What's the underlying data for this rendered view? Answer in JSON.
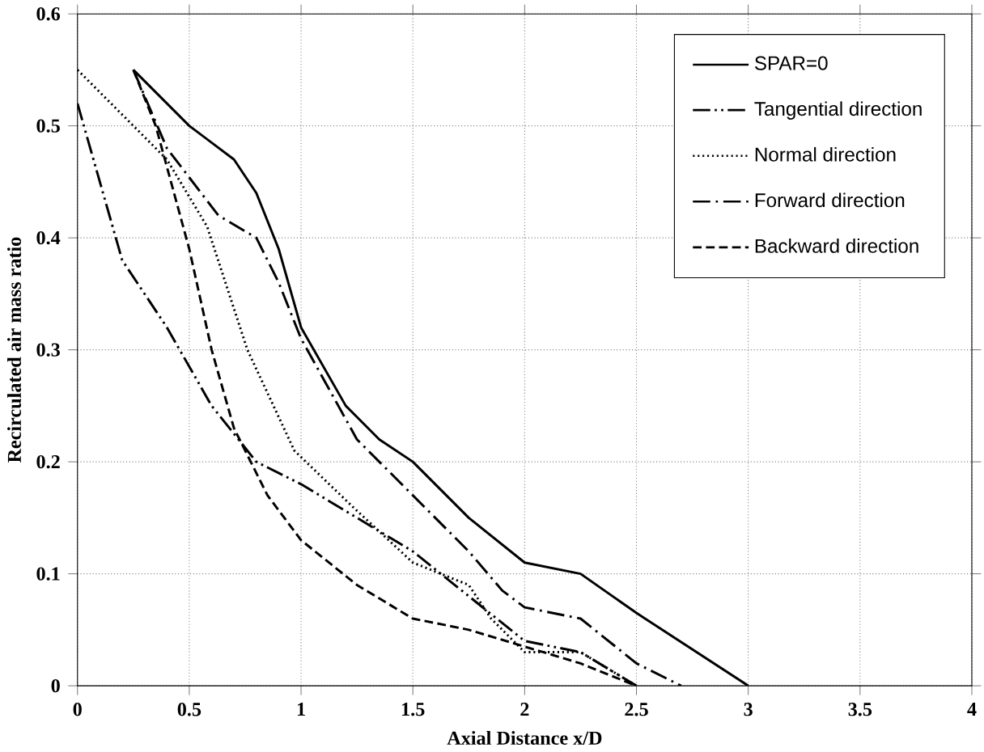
{
  "chart_data": {
    "type": "line",
    "xlabel": "Axial Distance x/D",
    "ylabel": "Recirculated air mass ratio",
    "xlim": [
      0,
      4
    ],
    "xticks": [
      0,
      0.5,
      1,
      1.5,
      2,
      2.5,
      3,
      3.5,
      4
    ],
    "ylim": [
      0,
      0.6
    ],
    "yticks": [
      0,
      0.1,
      0.2,
      0.3,
      0.4,
      0.5,
      0.6
    ],
    "grid": true,
    "legend": "top right",
    "marker": "none",
    "series": [
      {
        "name": "SPAR=0",
        "color": "#000000",
        "line_style": "solid",
        "x": [
          0.25,
          0.5,
          0.7,
          0.8,
          0.9,
          1.0,
          1.2,
          1.35,
          1.5,
          1.75,
          2.0,
          2.25,
          2.5,
          3.0
        ],
        "values": [
          0.55,
          0.5,
          0.47,
          0.44,
          0.39,
          0.32,
          0.25,
          0.22,
          0.2,
          0.15,
          0.11,
          0.1,
          0.065,
          0
        ]
      },
      {
        "name": "Tangential  direction",
        "color": "#000000",
        "line_style": "dashdotdot",
        "x": [
          0,
          0.1,
          0.2,
          0.4,
          0.6,
          0.8,
          1.0,
          1.25,
          1.5,
          1.75,
          2.0,
          2.25,
          2.5
        ],
        "values": [
          0.52,
          0.45,
          0.38,
          0.32,
          0.25,
          0.2,
          0.18,
          0.15,
          0.12,
          0.08,
          0.04,
          0.03,
          0
        ]
      },
      {
        "name": "Normal direction",
        "color": "#000000",
        "line_style": "dotted",
        "x": [
          0,
          0.25,
          0.4,
          0.58,
          0.76,
          0.97,
          1.23,
          1.5,
          1.75,
          1.85,
          2.0,
          2.25,
          2.5
        ],
        "values": [
          0.55,
          0.5,
          0.47,
          0.41,
          0.3,
          0.21,
          0.16,
          0.11,
          0.09,
          0.06,
          0.03,
          0.03,
          0
        ]
      },
      {
        "name": "Forward direction",
        "color": "#000000",
        "line_style": "dashdot",
        "x": [
          0.25,
          0.4,
          0.63,
          0.8,
          0.9,
          1.0,
          1.25,
          1.5,
          1.75,
          1.9,
          2.0,
          2.25,
          2.5,
          2.7
        ],
        "values": [
          0.55,
          0.48,
          0.42,
          0.4,
          0.36,
          0.31,
          0.22,
          0.17,
          0.12,
          0.085,
          0.07,
          0.06,
          0.02,
          0
        ]
      },
      {
        "name": "Backward direction",
        "color": "#000000",
        "line_style": "dashed",
        "x": [
          0.25,
          0.35,
          0.5,
          0.6,
          0.7,
          0.85,
          1.0,
          1.25,
          1.5,
          1.75,
          2.0,
          2.25,
          2.5
        ],
        "values": [
          0.55,
          0.5,
          0.39,
          0.3,
          0.23,
          0.17,
          0.13,
          0.09,
          0.06,
          0.05,
          0.035,
          0.02,
          0
        ]
      }
    ]
  }
}
